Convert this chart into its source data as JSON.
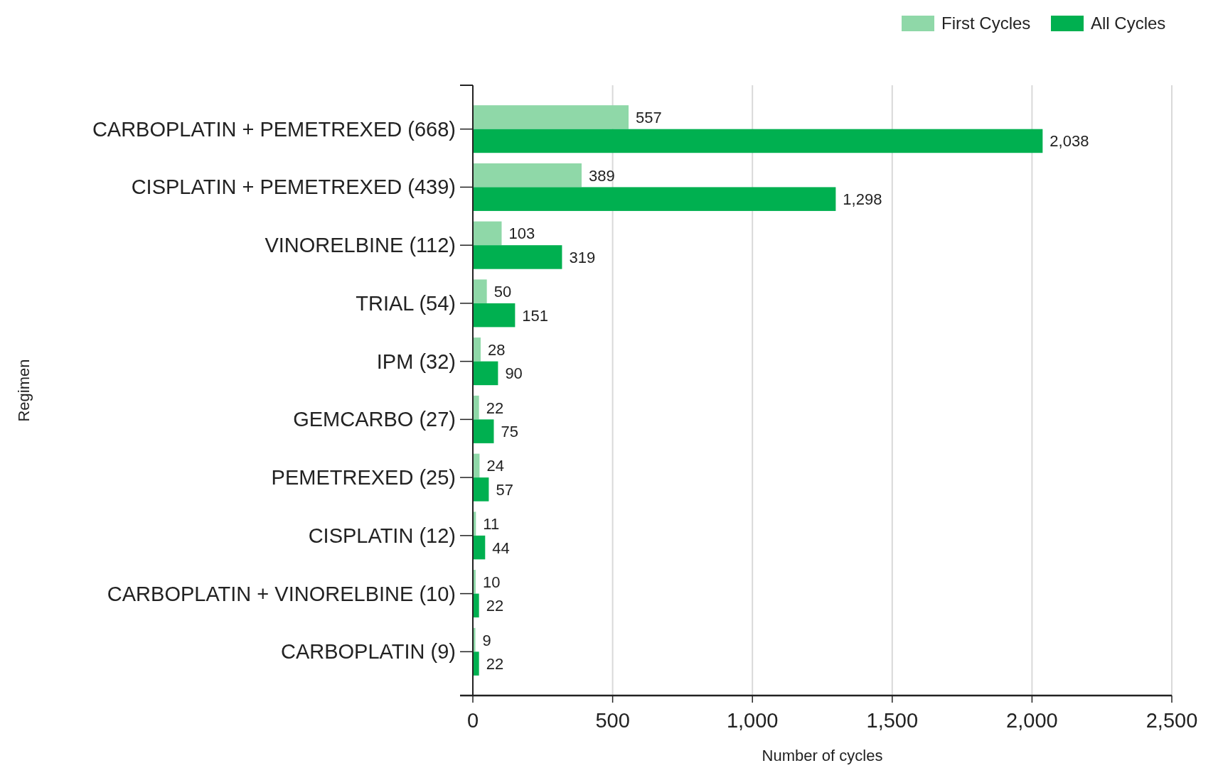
{
  "chart_data": {
    "type": "bar",
    "orientation": "horizontal",
    "xlabel": "Number of cycles",
    "ylabel": "Regimen",
    "categories": [
      "CARBOPLATIN + PEMETREXED (668)",
      "CISPLATIN + PEMETREXED (439)",
      "VINORELBINE (112)",
      "TRIAL (54)",
      "IPM (32)",
      "GEMCARBO (27)",
      "PEMETREXED (25)",
      "CISPLATIN (12)",
      "CARBOPLATIN + VINORELBINE (10)",
      "CARBOPLATIN (9)"
    ],
    "series": [
      {
        "name": "First Cycles",
        "color": "#8fd8a8",
        "values": [
          557,
          389,
          103,
          50,
          28,
          22,
          24,
          11,
          10,
          9
        ],
        "value_labels": [
          "557",
          "389",
          "103",
          "50",
          "28",
          "22",
          "24",
          "11",
          "10",
          "9"
        ]
      },
      {
        "name": "All Cycles",
        "color": "#00b050",
        "values": [
          2038,
          1298,
          319,
          151,
          90,
          75,
          57,
          44,
          22,
          22
        ],
        "value_labels": [
          "2,038",
          "1,298",
          "319",
          "151",
          "90",
          "75",
          "57",
          "44",
          "22",
          "22"
        ]
      }
    ],
    "xlim": [
      0,
      2500
    ],
    "xticks": [
      0,
      500,
      {
        "value": 1000,
        "label": "1,000"
      },
      {
        "value": 1500,
        "label": "1,500"
      },
      {
        "value": 2000,
        "label": "2,000"
      },
      {
        "value": 2500,
        "label": "2,500"
      }
    ],
    "grid": "x",
    "legend": "top right"
  }
}
